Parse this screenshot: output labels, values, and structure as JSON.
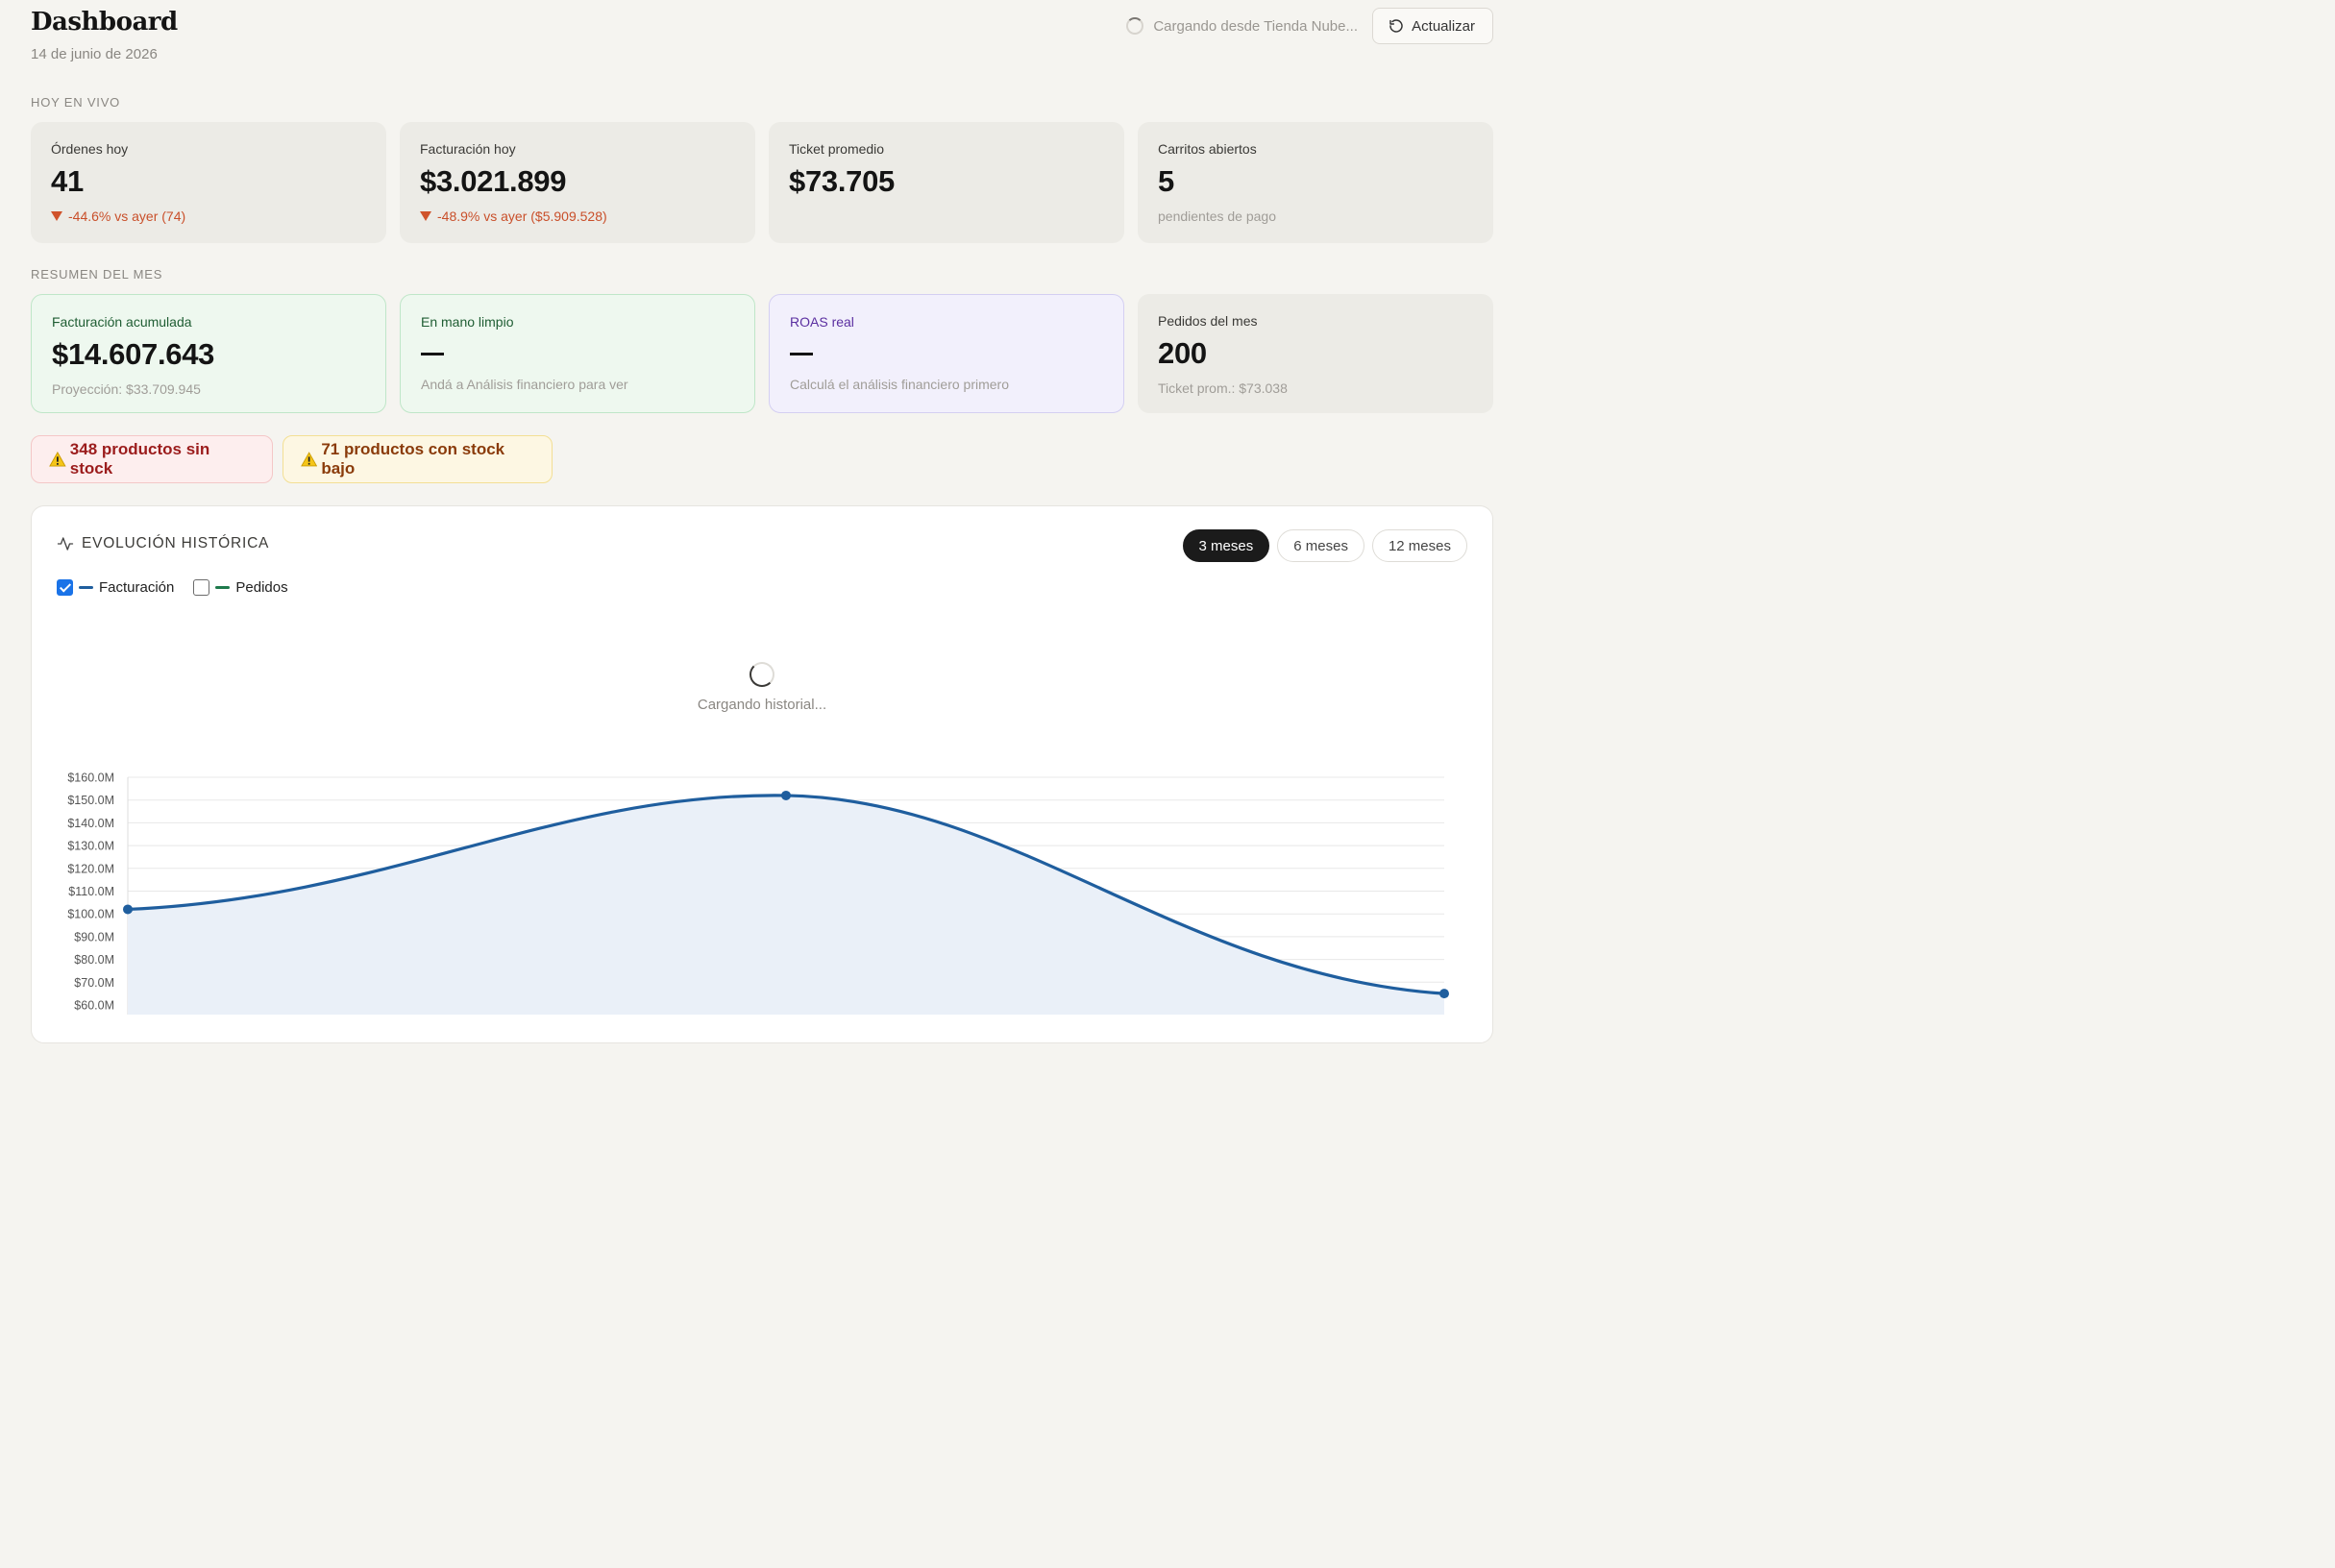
{
  "header": {
    "title": "Dashboard",
    "date": "14 de junio de 2026",
    "loading_status": "Cargando desde Tienda Nube...",
    "refresh_label": "Actualizar"
  },
  "today": {
    "section_label": "HOY EN VIVO",
    "cards": [
      {
        "label": "Órdenes hoy",
        "value": "41",
        "sub": "-44.6% vs ayer (74)"
      },
      {
        "label": "Facturación hoy",
        "value": "$3.021.899",
        "sub": "-48.9% vs ayer ($5.909.528)"
      },
      {
        "label": "Ticket promedio",
        "value": "$73.705"
      },
      {
        "label": "Carritos abiertos",
        "value": "5",
        "sub": "pendientes de pago"
      }
    ]
  },
  "month": {
    "section_label": "RESUMEN DEL MES",
    "cards": [
      {
        "label": "Facturación acumulada",
        "value": "$14.607.643",
        "sub": "Proyección: $33.709.945"
      },
      {
        "label": "En mano limpio",
        "value": "—",
        "sub": "Andá a Análisis financiero para ver"
      },
      {
        "label": "ROAS real",
        "value": "—",
        "sub": "Calculá el análisis financiero primero"
      },
      {
        "label": "Pedidos del mes",
        "value": "200",
        "sub": "Ticket prom.: $73.038"
      }
    ]
  },
  "alerts": {
    "no_stock": "348 productos sin stock",
    "low_stock": "71 productos con stock bajo"
  },
  "history": {
    "title": "EVOLUCIÓN HISTÓRICA",
    "ranges": [
      "3 meses",
      "6 meses",
      "12 meses"
    ],
    "active_range": "3 meses",
    "legend": [
      {
        "label": "Facturación",
        "checked": true,
        "color": "#1f5e9e"
      },
      {
        "label": "Pedidos",
        "checked": false,
        "color": "#1e7a4c"
      }
    ],
    "loading_text": "Cargando historial..."
  },
  "colors": {
    "line": "#1f5e9e",
    "area": "#eaf0f8",
    "grid": "#e8e8e8"
  },
  "chart_data": {
    "type": "area",
    "series": [
      {
        "name": "Facturación",
        "values": [
          102,
          152,
          65
        ]
      }
    ],
    "ylim": [
      60,
      160
    ],
    "yticks": [
      160,
      150,
      140,
      130,
      120,
      110,
      100,
      90,
      80,
      70,
      60
    ],
    "ytick_labels": [
      "$160.0M",
      "$150.0M",
      "$140.0M",
      "$130.0M",
      "$120.0M",
      "$110.0M",
      "$100.0M",
      "$90.0M",
      "$80.0M",
      "$70.0M",
      "$60.0M"
    ]
  }
}
